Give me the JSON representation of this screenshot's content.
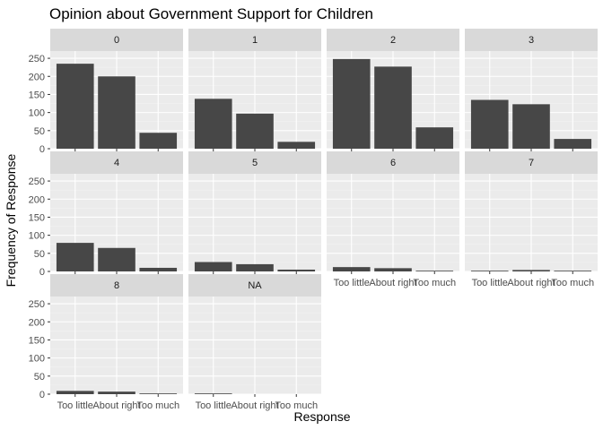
{
  "chart_data": {
    "type": "bar",
    "title": "Opinion about Government Support for Children",
    "xlabel": "Response",
    "ylabel": "Frequency of Response",
    "categories": [
      "Too little",
      "About right",
      "Too much"
    ],
    "ylim": [
      0,
      270
    ],
    "yticks": [
      0,
      50,
      100,
      150,
      200,
      250
    ],
    "grid": true,
    "legend": "none",
    "facets": [
      {
        "label": "0",
        "values": [
          235,
          200,
          44
        ]
      },
      {
        "label": "1",
        "values": [
          138,
          97,
          19
        ]
      },
      {
        "label": "2",
        "values": [
          248,
          227,
          59
        ]
      },
      {
        "label": "3",
        "values": [
          135,
          123,
          27
        ]
      },
      {
        "label": "4",
        "values": [
          79,
          65,
          10
        ]
      },
      {
        "label": "5",
        "values": [
          26,
          20,
          5
        ]
      },
      {
        "label": "6",
        "values": [
          12,
          9,
          2
        ]
      },
      {
        "label": "7",
        "values": [
          2,
          4,
          2
        ]
      },
      {
        "label": "8",
        "values": [
          9,
          7,
          2
        ]
      },
      {
        "label": "NA",
        "values": [
          2,
          0,
          0
        ]
      }
    ]
  },
  "colors": {
    "panel_background": "#ebebeb",
    "grid_major": "#ffffff",
    "grid_minor": "#f2f2f2",
    "strip_background": "#d9d9d9",
    "bar_fill": "#474747",
    "tick_label": "#4d4d4d"
  }
}
